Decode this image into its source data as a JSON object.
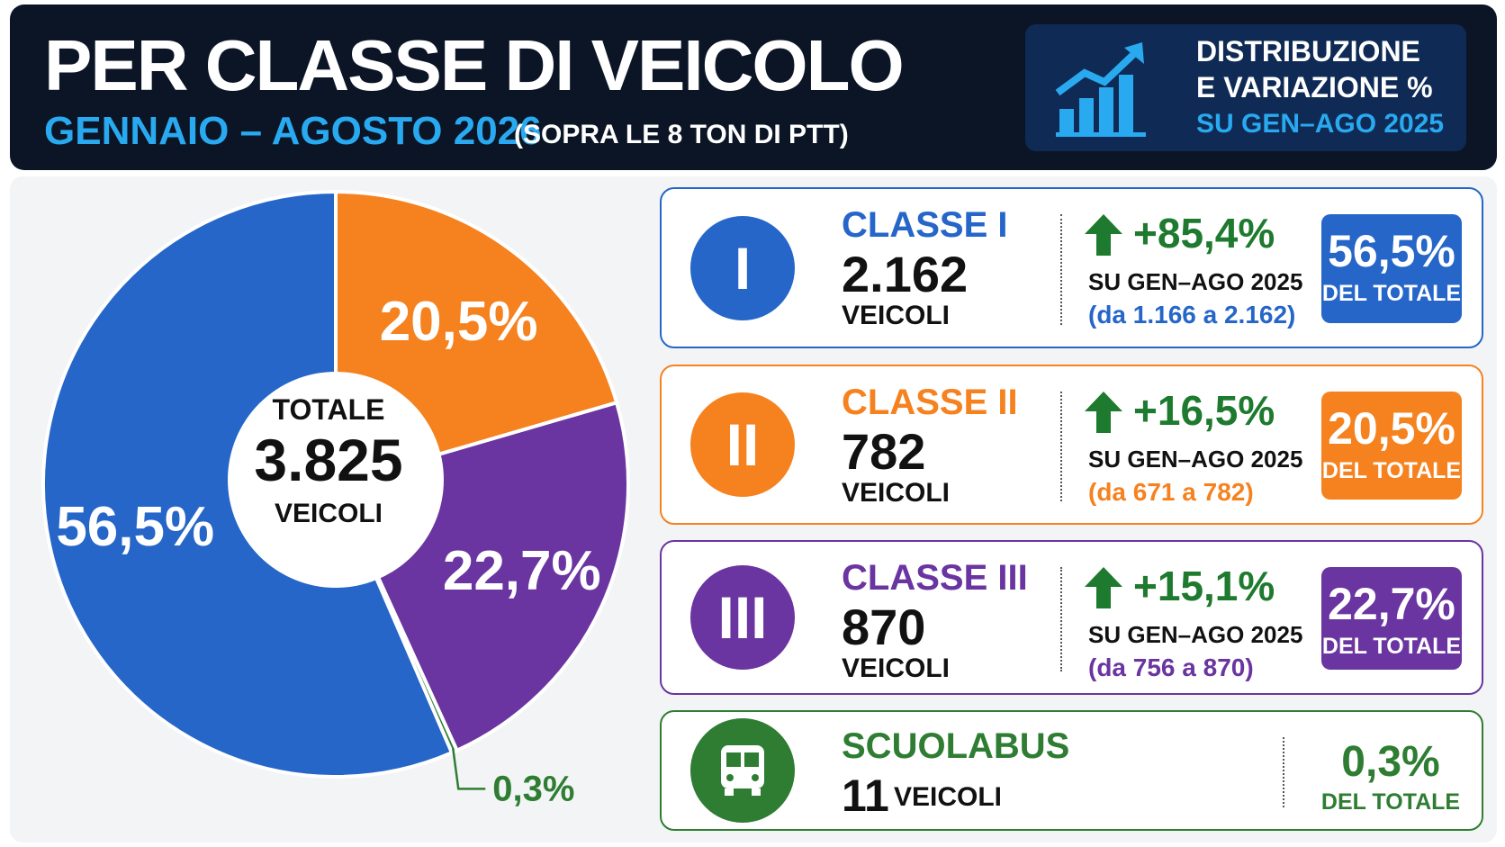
{
  "header": {
    "title": "PER CLASSE DI VEICOLO",
    "period": "GENNAIO – AGOSTO 2026",
    "note": "(SOPRA LE 8 TON DI PTT)",
    "badge": [
      "DISTRIBUZIONE",
      "E VARIAZIONE %",
      "SU GEN–AGO 2025"
    ]
  },
  "chart_data": {
    "type": "pie",
    "categories": [
      "CLASSE I",
      "CLASSE II",
      "CLASSE III",
      "SCUOLABUS"
    ],
    "values": [
      56.5,
      20.5,
      22.7,
      0.3
    ],
    "value_labels": [
      "56,5%",
      "20,5%",
      "22,7%",
      "0,3%"
    ],
    "colors": [
      "#2566c8",
      "#f5821f",
      "#6a35a0",
      "#2e7d32"
    ],
    "center": {
      "label": "TOTALE",
      "total": "3.825",
      "unit": "VEICOLI"
    }
  },
  "cards": [
    {
      "icon": "I",
      "count": "2.162",
      "unit": "VEICOLI",
      "change": "+85,4%",
      "base": "SU GEN–AGO 2025",
      "range": "(da 1.166 a 2.162)",
      "share_label": "DEL TOTALE"
    },
    {
      "icon": "II",
      "count": "782",
      "unit": "VEICOLI",
      "change": "+16,5%",
      "base": "SU GEN–AGO 2025",
      "range": "(da 671 a 782)",
      "share_label": "DEL TOTALE"
    },
    {
      "icon": "III",
      "count": "870",
      "unit": "VEICOLI",
      "change": "+15,1%",
      "base": "SU GEN–AGO 2025",
      "range": "(da 756 a 870)",
      "share_label": "DEL TOTALE"
    },
    {
      "count": "11",
      "unit": "VEICOLI",
      "share_label": "DEL TOTALE"
    }
  ]
}
